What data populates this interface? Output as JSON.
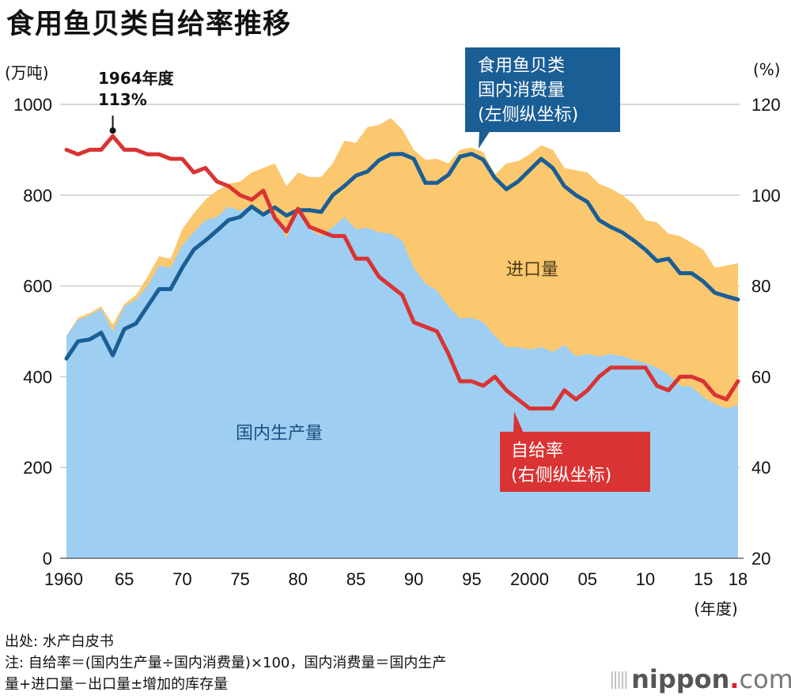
{
  "title": "食用鱼贝类自给率推移",
  "unit_left": "(万吨)",
  "unit_right": "(%)",
  "notes": [
    "出处: 水产白皮书",
    "注: 自给率＝(国内生产量÷国内消费量)×100，国内消费量＝国内生产",
    "量+进口量－出口量±增加的库存量"
  ],
  "logo": {
    "brand": "nippon",
    "dot": ".",
    "suffix": "com"
  },
  "colors": {
    "production": "#9ecff2",
    "imports": "#fbc86f",
    "consumption": "#1a5e96",
    "self_sufficiency": "#d93333",
    "callout_blue": "#1a5e96",
    "callout_red": "#d93333",
    "grid": "#cccccc"
  },
  "chart_data": {
    "type": "area",
    "title": "食用鱼贝类自给率推移",
    "xlabel": "(年度)",
    "ylabel_left": "(万吨)",
    "ylabel_right": "(%)",
    "ylim_left": [
      0,
      1000
    ],
    "ylim_right": [
      20,
      120
    ],
    "yticks_left": [
      0,
      200,
      400,
      600,
      800,
      1000
    ],
    "yticks_right": [
      20,
      40,
      60,
      80,
      100,
      120
    ],
    "xtick_labels": [
      {
        "year": 1960,
        "label": "1960"
      },
      {
        "year": 1965,
        "label": "65"
      },
      {
        "year": 1970,
        "label": "70"
      },
      {
        "year": 1975,
        "label": "75"
      },
      {
        "year": 1980,
        "label": "80"
      },
      {
        "year": 1985,
        "label": "85"
      },
      {
        "year": 1990,
        "label": "90"
      },
      {
        "year": 1995,
        "label": "95"
      },
      {
        "year": 2000,
        "label": "2000"
      },
      {
        "year": 2005,
        "label": "05"
      },
      {
        "year": 2010,
        "label": "10"
      },
      {
        "year": 2015,
        "label": "15"
      },
      {
        "year": 2018,
        "label": "18"
      }
    ],
    "grid": true,
    "x": [
      1960,
      1961,
      1962,
      1963,
      1964,
      1965,
      1966,
      1967,
      1968,
      1969,
      1970,
      1971,
      1972,
      1973,
      1974,
      1975,
      1976,
      1977,
      1978,
      1979,
      1980,
      1981,
      1982,
      1983,
      1984,
      1985,
      1986,
      1987,
      1988,
      1989,
      1990,
      1991,
      1992,
      1993,
      1994,
      1995,
      1996,
      1997,
      1998,
      1999,
      2000,
      2001,
      2002,
      2003,
      2004,
      2005,
      2006,
      2007,
      2008,
      2009,
      2010,
      2011,
      2012,
      2013,
      2014,
      2015,
      2016,
      2017,
      2018
    ],
    "series": [
      {
        "name": "国内生产量",
        "kind": "area",
        "axis": "left",
        "values": [
          490,
          525,
          535,
          550,
          500,
          555,
          570,
          600,
          645,
          640,
          690,
          718,
          745,
          752,
          775,
          765,
          778,
          760,
          760,
          705,
          765,
          725,
          710,
          730,
          752,
          725,
          728,
          718,
          715,
          700,
          640,
          605,
          590,
          555,
          528,
          530,
          520,
          490,
          465,
          465,
          460,
          465,
          455,
          470,
          445,
          450,
          445,
          450,
          445,
          437,
          430,
          420,
          405,
          380,
          378,
          355,
          340,
          330,
          338
        ]
      },
      {
        "name": "进口量 (area top = 国内生产量+进口量)",
        "kind": "area",
        "axis": "left",
        "values": [
          490,
          530,
          540,
          555,
          515,
          560,
          580,
          620,
          665,
          660,
          725,
          760,
          790,
          810,
          825,
          830,
          850,
          860,
          870,
          820,
          850,
          840,
          840,
          870,
          920,
          915,
          950,
          955,
          970,
          945,
          900,
          878,
          880,
          870,
          900,
          905,
          895,
          845,
          870,
          875,
          890,
          910,
          900,
          860,
          855,
          850,
          825,
          815,
          800,
          780,
          745,
          740,
          715,
          710,
          695,
          680,
          640,
          645,
          650
        ]
      },
      {
        "name": "食用鱼贝类国内消费量 (左侧纵坐标)",
        "kind": "line",
        "axis": "left",
        "values": [
          440,
          478,
          482,
          497,
          447,
          505,
          517,
          555,
          593,
          593,
          640,
          680,
          700,
          722,
          745,
          752,
          775,
          757,
          773,
          755,
          767,
          767,
          763,
          800,
          820,
          843,
          852,
          877,
          890,
          891,
          880,
          827,
          827,
          845,
          885,
          891,
          878,
          838,
          813,
          830,
          855,
          880,
          860,
          820,
          800,
          785,
          745,
          730,
          718,
          700,
          680,
          655,
          660,
          628,
          628,
          610,
          585,
          577,
          570
        ]
      },
      {
        "name": "自给率 (右侧纵坐标)",
        "kind": "line",
        "axis": "right",
        "values": [
          110,
          109,
          110,
          110,
          113,
          110,
          110,
          109,
          109,
          108,
          108,
          105,
          106,
          103,
          102,
          100,
          99,
          101,
          95,
          92,
          97,
          93,
          92,
          91,
          91,
          86,
          86,
          82,
          80,
          78,
          72,
          71,
          70,
          65,
          59,
          59,
          58,
          60,
          57,
          55,
          53,
          53,
          53,
          57,
          55,
          57,
          60,
          62,
          62,
          62,
          62,
          58,
          57,
          60,
          60,
          59,
          56,
          55,
          59
        ]
      }
    ],
    "annotations": [
      {
        "text_line1": "1964年度",
        "text_line2": "113%",
        "year": 1964,
        "value": 113,
        "axis": "right"
      },
      {
        "text": "进口量",
        "type": "area-label"
      },
      {
        "text": "国内生产量",
        "type": "area-label"
      }
    ],
    "callouts": [
      {
        "lines": [
          "食用鱼贝类",
          "国内消费量",
          "(左侧纵坐标)"
        ],
        "points_to_year": 1995,
        "series": "consumption"
      },
      {
        "lines": [
          "自给率",
          "(右侧纵坐标)"
        ],
        "points_to_year": 1999,
        "series": "self_sufficiency"
      }
    ],
    "legend": "none"
  }
}
